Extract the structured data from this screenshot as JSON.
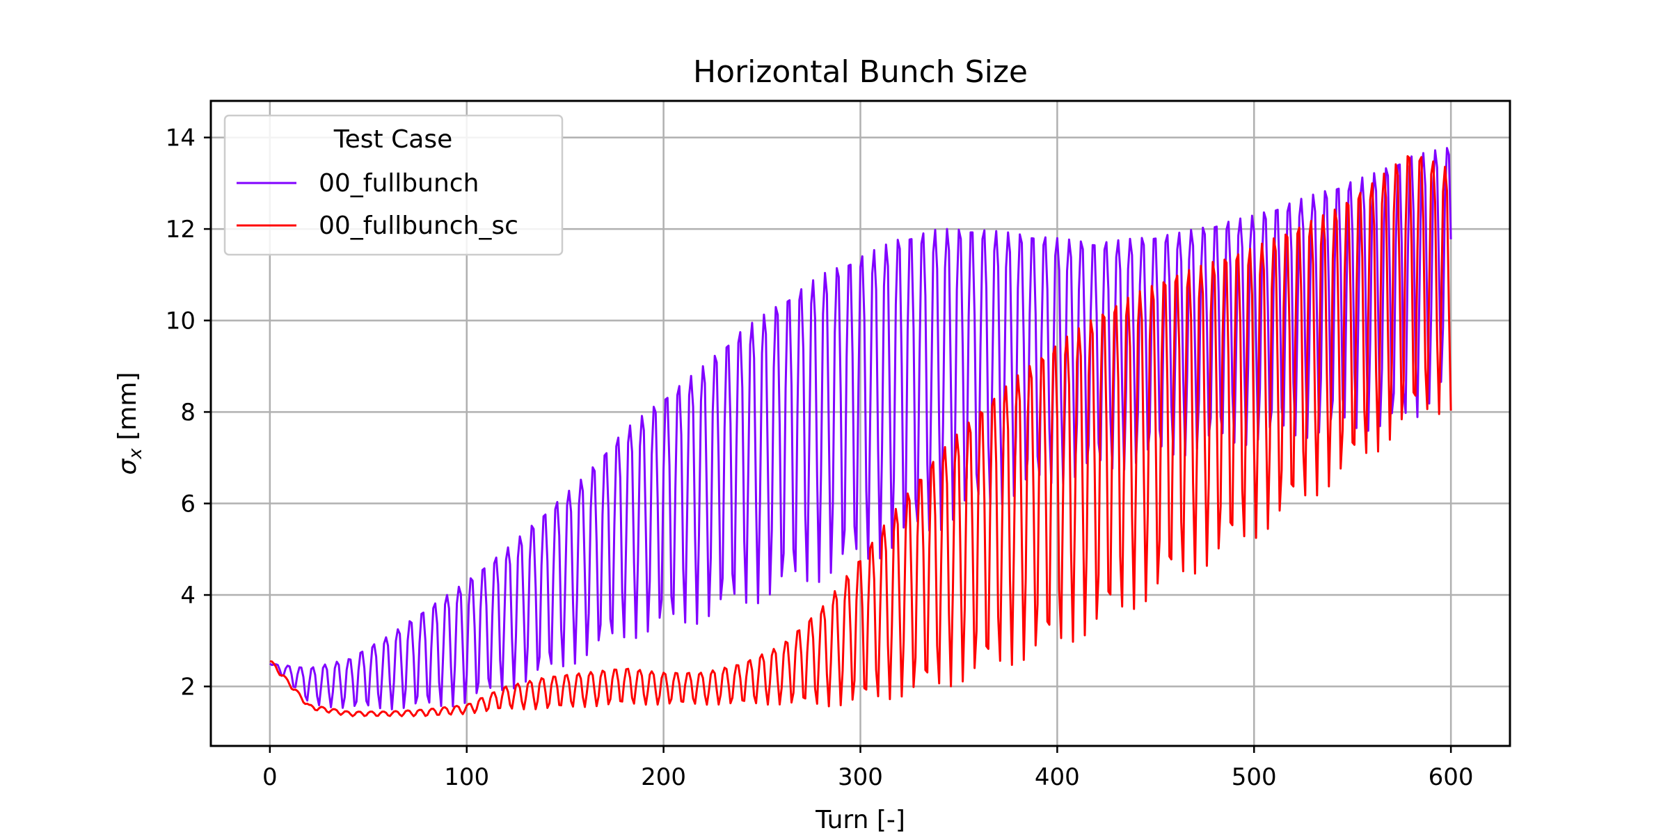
{
  "chart_data": {
    "type": "line",
    "title": "Horizontal Bunch Size",
    "xlabel": "Turn [-]",
    "ylabel_main": "σ",
    "ylabel_sub": "x",
    "ylabel_unit": " [mm]",
    "xlim": [
      -30,
      630
    ],
    "ylim": [
      0.7,
      14.8
    ],
    "xticks": [
      0,
      100,
      200,
      300,
      400,
      500,
      600
    ],
    "yticks": [
      2,
      4,
      6,
      8,
      10,
      12,
      14
    ],
    "grid": true,
    "legend": {
      "title": "Test Case",
      "placement": "top-left"
    },
    "series": [
      {
        "name": "00_fullbunch",
        "color": "#8000ff",
        "envelope_turns": [
          0,
          20,
          40,
          60,
          80,
          100,
          120,
          140,
          160,
          180,
          200,
          220,
          240,
          260,
          280,
          300,
          320,
          340,
          360,
          380,
          400,
          420,
          440,
          460,
          480,
          500,
          520,
          540,
          560,
          580,
          600
        ],
        "envelope_high": [
          2.5,
          2.4,
          2.6,
          3.1,
          3.7,
          4.3,
          5.0,
          5.8,
          6.6,
          7.6,
          8.3,
          9.0,
          9.8,
          10.4,
          11.0,
          11.4,
          11.8,
          12.0,
          12.0,
          11.9,
          11.8,
          11.7,
          11.8,
          11.9,
          12.1,
          12.3,
          12.6,
          12.9,
          13.2,
          13.6,
          13.8
        ],
        "envelope_low": [
          2.5,
          1.6,
          1.5,
          1.5,
          1.5,
          1.6,
          1.9,
          2.2,
          2.6,
          3.0,
          3.2,
          3.4,
          3.7,
          4.0,
          4.3,
          4.6,
          5.0,
          5.4,
          5.8,
          6.1,
          6.4,
          6.6,
          6.8,
          7.0,
          7.2,
          7.3,
          7.4,
          7.5,
          7.6,
          7.6,
          8.9
        ]
      },
      {
        "name": "00_fullbunch_sc",
        "color": "#ff0000",
        "envelope_turns": [
          0,
          20,
          40,
          60,
          80,
          100,
          120,
          140,
          160,
          180,
          200,
          220,
          240,
          260,
          280,
          300,
          320,
          340,
          360,
          380,
          400,
          420,
          440,
          460,
          480,
          500,
          520,
          540,
          560,
          580,
          600
        ],
        "envelope_high": [
          2.6,
          1.6,
          1.45,
          1.45,
          1.5,
          1.6,
          2.0,
          2.2,
          2.3,
          2.4,
          2.3,
          2.3,
          2.5,
          2.9,
          3.7,
          4.8,
          6.0,
          7.1,
          8.0,
          8.8,
          9.5,
          10.1,
          10.6,
          11.0,
          11.3,
          11.6,
          12.0,
          12.4,
          13.0,
          13.7,
          13.3
        ],
        "envelope_low": [
          2.5,
          1.5,
          1.35,
          1.35,
          1.35,
          1.4,
          1.5,
          1.5,
          1.55,
          1.6,
          1.6,
          1.6,
          1.6,
          1.6,
          1.55,
          1.6,
          1.75,
          1.9,
          2.2,
          2.5,
          2.8,
          3.2,
          3.7,
          4.2,
          4.7,
          5.2,
          5.8,
          6.4,
          7.0,
          7.8,
          8.0
        ]
      }
    ]
  }
}
